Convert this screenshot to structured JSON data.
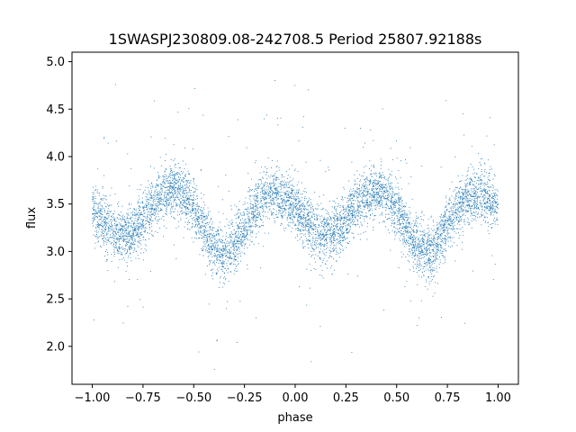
{
  "chart_data": {
    "type": "scatter",
    "title": "1SWASPJ230809.08-242708.5 Period 25807.92188s",
    "xlabel": "phase",
    "ylabel": "flux",
    "xlim": [
      -1.1,
      1.1
    ],
    "ylim": [
      1.6,
      5.1
    ],
    "x_ticks": [
      -1.0,
      -0.75,
      -0.5,
      -0.25,
      0.0,
      0.25,
      0.5,
      0.75,
      1.0
    ],
    "x_tick_labels": [
      "−1.00",
      "−0.75",
      "−0.50",
      "−0.25",
      "0.00",
      "0.25",
      "0.50",
      "0.75",
      "1.00"
    ],
    "y_ticks": [
      2.0,
      2.5,
      3.0,
      3.5,
      4.0,
      4.5,
      5.0
    ],
    "y_tick_labels": [
      "2.0",
      "2.5",
      "3.0",
      "3.5",
      "4.0",
      "4.5",
      "5.0"
    ],
    "grid": false,
    "legend": "none",
    "point_color": "#1f77b4",
    "series": [
      {
        "phase_range": [
          -1.0,
          1.0
        ],
        "trend": {
          "x": [
            -1.0,
            -0.95,
            -0.9,
            -0.85,
            -0.8,
            -0.75,
            -0.7,
            -0.65,
            -0.6,
            -0.55,
            -0.5,
            -0.45,
            -0.4,
            -0.35,
            -0.3,
            -0.25,
            -0.2,
            -0.15,
            -0.1,
            -0.05,
            0.0,
            0.05,
            0.1,
            0.15,
            0.2,
            0.25,
            0.3,
            0.35,
            0.4,
            0.45,
            0.5,
            0.55,
            0.6,
            0.65,
            0.7,
            0.75,
            0.8,
            0.85,
            0.9,
            0.95,
            1.0
          ],
          "y": [
            3.45,
            3.32,
            3.22,
            3.17,
            3.2,
            3.33,
            3.48,
            3.6,
            3.65,
            3.6,
            3.43,
            3.22,
            3.05,
            2.97,
            3.07,
            3.27,
            3.45,
            3.57,
            3.6,
            3.57,
            3.45,
            3.32,
            3.22,
            3.17,
            3.2,
            3.33,
            3.48,
            3.6,
            3.65,
            3.6,
            3.43,
            3.22,
            3.05,
            2.97,
            3.07,
            3.27,
            3.45,
            3.57,
            3.6,
            3.57,
            3.45
          ]
        },
        "scatter_sd": 0.14,
        "outlier_fraction": 0.05,
        "outlier_range": [
          1.75,
          5.0
        ]
      }
    ]
  }
}
